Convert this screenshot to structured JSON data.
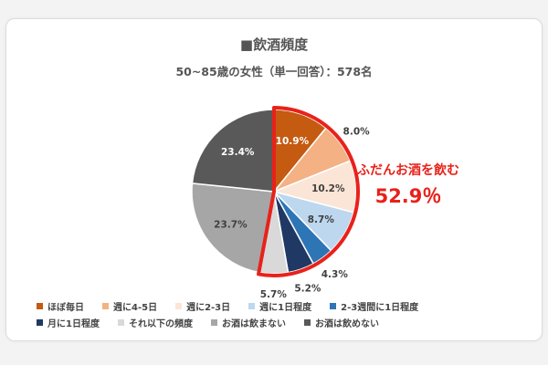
{
  "header": {
    "title": "■飲酒頻度",
    "subtitle": "50~85歳の女性（単一回答）：578名"
  },
  "callout": {
    "label": "ふだんお酒を飲む",
    "value": "52.9％",
    "color": "#e8221b"
  },
  "chart_data": {
    "type": "pie",
    "title": "■飲酒頻度",
    "subtitle": "50~85歳の女性（単一回答）：578名",
    "unit": "%",
    "slices": [
      {
        "name": "ほぼ毎日",
        "value": 10.9,
        "label": "10.9%",
        "color": "#c55a11"
      },
      {
        "name": "週に4-5日",
        "value": 8.0,
        "label": "8.0%",
        "color": "#f4b183"
      },
      {
        "name": "週に2-3日",
        "value": 10.2,
        "label": "10.2%",
        "color": "#fbe5d6"
      },
      {
        "name": "週に1日程度",
        "value": 8.7,
        "label": "8.7%",
        "color": "#bdd7ee"
      },
      {
        "name": "2-3週間に1日程度",
        "value": 4.3,
        "label": "4.3%",
        "color": "#2e75b6"
      },
      {
        "name": "月に1日程度",
        "value": 5.2,
        "label": "5.2%",
        "color": "#203864"
      },
      {
        "name": "それ以下の頻度",
        "value": 5.7,
        "label": "5.7%",
        "color": "#d9d9d9"
      },
      {
        "name": "お酒は飲まない",
        "value": 23.7,
        "label": "23.7%",
        "color": "#a6a6a6"
      },
      {
        "name": "お酒は飲めない",
        "value": 23.4,
        "label": "23.4%",
        "color": "#595959"
      }
    ],
    "legend_position": "bottom",
    "highlight_group": {
      "slices": 7,
      "total": 52.9
    }
  }
}
